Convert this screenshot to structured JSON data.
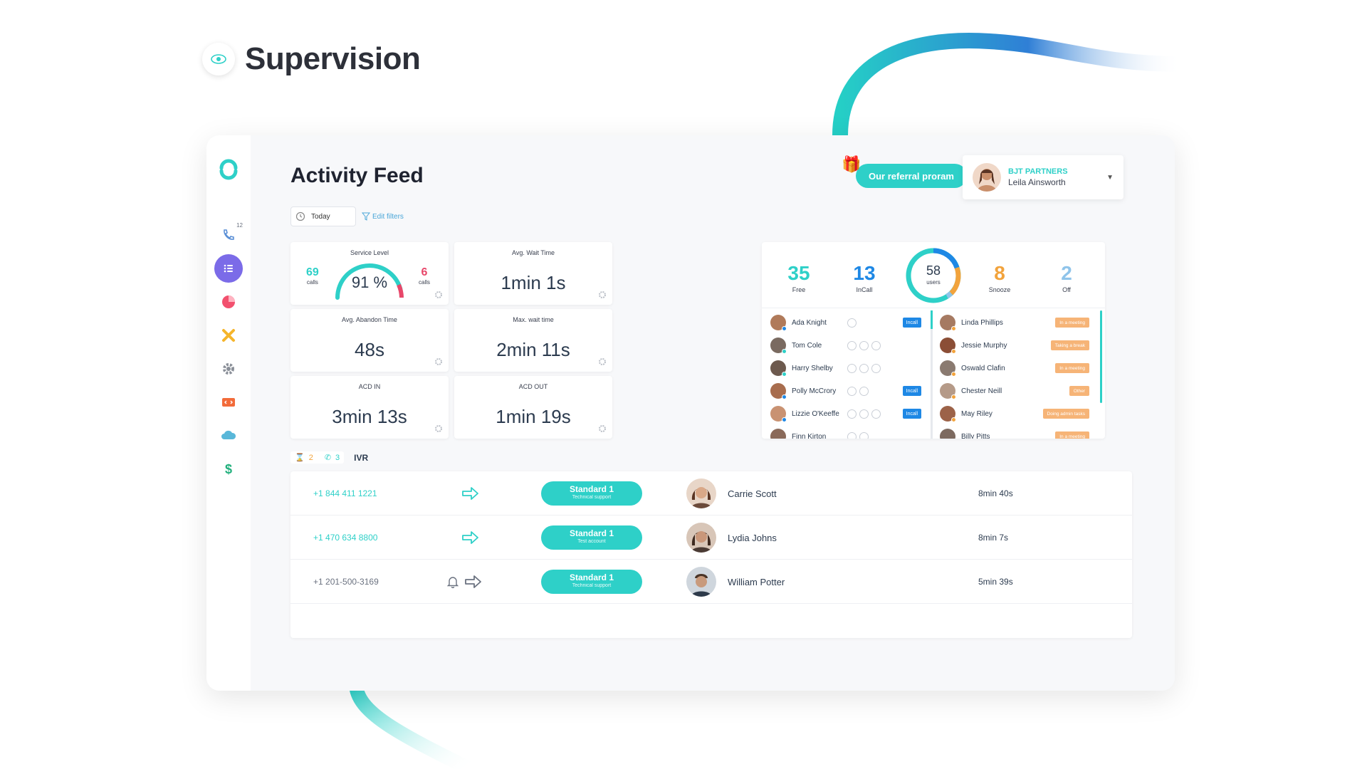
{
  "brand": {
    "title": "Supervision",
    "icon": "eye-icon"
  },
  "page": {
    "title": "Activity Feed"
  },
  "header": {
    "referral_label": "Our referral proram",
    "account_company": "BJT PARTNERS",
    "account_user": "Leila Ainsworth"
  },
  "filters": {
    "date": "Today",
    "edit": "Edit filters"
  },
  "sidebar": {
    "items": [
      {
        "icon": "phone-icon",
        "badge": "12"
      },
      {
        "icon": "list-icon",
        "active": true
      },
      {
        "icon": "pie-chart-icon"
      },
      {
        "icon": "tools-icon"
      },
      {
        "icon": "gear-icon"
      },
      {
        "icon": "code-icon"
      },
      {
        "icon": "cloud-icon"
      },
      {
        "icon": "dollar-icon"
      }
    ]
  },
  "stats": {
    "service_level": {
      "label": "Service Level",
      "percent": "91 %",
      "percent_value": 0.91,
      "left_calls": "69",
      "right_calls": "6",
      "calls_label": "calls"
    },
    "avg_wait": {
      "label": "Avg. Wait Time",
      "value": "1min 1s"
    },
    "avg_abandon": {
      "label": "Avg. Abandon Time",
      "value": "48s"
    },
    "max_wait": {
      "label": "Max. wait time",
      "value": "2min 11s"
    },
    "acd_in": {
      "label": "ACD IN",
      "value": "3min 13s"
    },
    "acd_out": {
      "label": "ACD OUT",
      "value": "1min 19s"
    }
  },
  "users": {
    "free": {
      "value": "35",
      "label": "Free",
      "color": "#2ed0c8"
    },
    "incall": {
      "value": "13",
      "label": "InCall",
      "color": "#1e88e5"
    },
    "total": {
      "value": "58",
      "label": "users"
    },
    "snooze": {
      "value": "8",
      "label": "Snooze",
      "color": "#f2a33c"
    },
    "off": {
      "value": "2",
      "label": "Off",
      "color": "#8fc4ea"
    },
    "incall_tag": "Incall",
    "left": [
      {
        "name": "Ada Knight",
        "incall": true,
        "icons": 1
      },
      {
        "name": "Tom Cole",
        "incall": false,
        "icons": 3
      },
      {
        "name": "Harry Shelby",
        "incall": false,
        "icons": 3
      },
      {
        "name": "Polly McCrory",
        "incall": true,
        "icons": 2
      },
      {
        "name": "Lizzie O'Keeffe",
        "incall": true,
        "icons": 3
      },
      {
        "name": "Finn Kirton",
        "incall": false,
        "icons": 2
      }
    ],
    "right": [
      {
        "name": "Linda Phillips",
        "status": "In a meeting"
      },
      {
        "name": "Jessie Murphy",
        "status": "Taking a break"
      },
      {
        "name": "Oswald Clafin",
        "status": "In a meeting"
      },
      {
        "name": "Chester Neill",
        "status": "Other"
      },
      {
        "name": "May Riley",
        "status": "Doing admin tasks"
      },
      {
        "name": "Billy Pitts",
        "status": "In a meeting"
      }
    ]
  },
  "ivr": {
    "waiting": "2",
    "calls": "3",
    "label": "IVR"
  },
  "calls": [
    {
      "number": "+1 844 411 1221",
      "queue": "Standard 1",
      "queue_sub": "Technical support",
      "agent": "Carrie Scott",
      "time": "8min 40s",
      "number_color": "#2ed0c8"
    },
    {
      "number": "+1 470 634 8800",
      "queue": "Standard 1",
      "queue_sub": "Test account",
      "agent": "Lydia Johns",
      "time": "8min 7s",
      "number_color": "#2ed0c8"
    },
    {
      "number": "+1 201-500-3169",
      "queue": "Standard 1",
      "queue_sub": "Technical support",
      "agent": "William Potter",
      "time": "5min 39s",
      "number_color": "#6b7280"
    }
  ]
}
